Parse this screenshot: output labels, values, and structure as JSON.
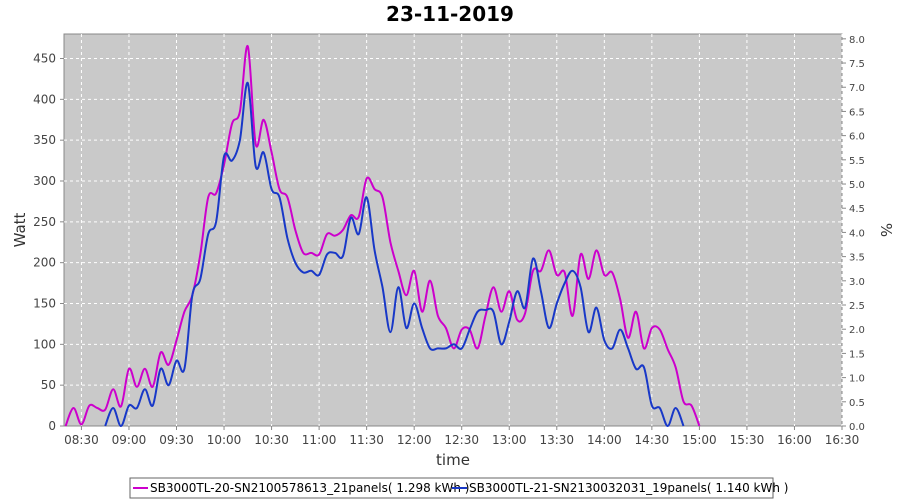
{
  "chart_data": {
    "type": "line",
    "title": "23-11-2019",
    "xlabel": "time",
    "ylabel": "Watt",
    "y2label": "%",
    "xlim": [
      "08:19",
      "16:30"
    ],
    "ylim": [
      0,
      480
    ],
    "y2lim": [
      0,
      8.1
    ],
    "x_ticks": [
      "08:30",
      "09:00",
      "09:30",
      "10:00",
      "10:30",
      "11:00",
      "11:30",
      "12:00",
      "12:30",
      "13:00",
      "13:30",
      "14:00",
      "14:30",
      "15:00",
      "15:30",
      "16:00",
      "16:30"
    ],
    "y_ticks": [
      0,
      50,
      100,
      150,
      200,
      250,
      300,
      350,
      400,
      450
    ],
    "y2_ticks": [
      "0.0",
      "0.5",
      "1.0",
      "1.5",
      "2.0",
      "2.5",
      "3.0",
      "3.5",
      "4.0",
      "4.5",
      "5.0",
      "5.5",
      "6.0",
      "6.5",
      "7.0",
      "7.5",
      "8.0"
    ],
    "grid": true,
    "legend": "bottom",
    "series": [
      {
        "name": "SB3000TL-20-SN2100578613_21panels( 1.298 kWh )",
        "color": "#cc00cc",
        "points": [
          [
            "08:20",
            0
          ],
          [
            "08:25",
            22
          ],
          [
            "08:30",
            2
          ],
          [
            "08:35",
            25
          ],
          [
            "08:40",
            22
          ],
          [
            "08:45",
            20
          ],
          [
            "08:50",
            45
          ],
          [
            "08:55",
            24
          ],
          [
            "09:00",
            70
          ],
          [
            "09:05",
            48
          ],
          [
            "09:10",
            70
          ],
          [
            "09:15",
            48
          ],
          [
            "09:20",
            90
          ],
          [
            "09:25",
            75
          ],
          [
            "09:30",
            105
          ],
          [
            "09:35",
            140
          ],
          [
            "09:40",
            160
          ],
          [
            "09:45",
            210
          ],
          [
            "09:50",
            280
          ],
          [
            "09:55",
            285
          ],
          [
            "10:00",
            320
          ],
          [
            "10:05",
            370
          ],
          [
            "10:10",
            385
          ],
          [
            "10:15",
            465
          ],
          [
            "10:20",
            345
          ],
          [
            "10:25",
            375
          ],
          [
            "10:30",
            335
          ],
          [
            "10:35",
            290
          ],
          [
            "10:40",
            280
          ],
          [
            "10:45",
            240
          ],
          [
            "10:50",
            212
          ],
          [
            "10:55",
            212
          ],
          [
            "11:00",
            210
          ],
          [
            "11:05",
            235
          ],
          [
            "11:10",
            233
          ],
          [
            "11:15",
            240
          ],
          [
            "11:20",
            258
          ],
          [
            "11:25",
            256
          ],
          [
            "11:30",
            303
          ],
          [
            "11:35",
            290
          ],
          [
            "11:40",
            280
          ],
          [
            "11:45",
            225
          ],
          [
            "11:50",
            190
          ],
          [
            "11:55",
            160
          ],
          [
            "12:00",
            190
          ],
          [
            "12:05",
            140
          ],
          [
            "12:10",
            178
          ],
          [
            "12:15",
            135
          ],
          [
            "12:20",
            120
          ],
          [
            "12:25",
            95
          ],
          [
            "12:30",
            118
          ],
          [
            "12:35",
            118
          ],
          [
            "12:40",
            95
          ],
          [
            "12:45",
            135
          ],
          [
            "12:50",
            170
          ],
          [
            "12:55",
            140
          ],
          [
            "13:00",
            165
          ],
          [
            "13:05",
            130
          ],
          [
            "13:10",
            138
          ],
          [
            "13:15",
            190
          ],
          [
            "13:20",
            190
          ],
          [
            "13:25",
            215
          ],
          [
            "13:30",
            185
          ],
          [
            "13:35",
            188
          ],
          [
            "13:40",
            135
          ],
          [
            "13:45",
            210
          ],
          [
            "13:50",
            180
          ],
          [
            "13:55",
            215
          ],
          [
            "14:00",
            185
          ],
          [
            "14:05",
            188
          ],
          [
            "14:10",
            155
          ],
          [
            "14:15",
            108
          ],
          [
            "14:20",
            140
          ],
          [
            "14:25",
            95
          ],
          [
            "14:30",
            120
          ],
          [
            "14:35",
            118
          ],
          [
            "14:40",
            94
          ],
          [
            "14:45",
            72
          ],
          [
            "14:50",
            30
          ],
          [
            "14:55",
            25
          ],
          [
            "15:00",
            0
          ]
        ]
      },
      {
        "name": "SB3000TL-21-SN2130032031_19panels( 1.140 kWh )",
        "color": "#1838c8",
        "points": [
          [
            "08:45",
            0
          ],
          [
            "08:50",
            22
          ],
          [
            "08:55",
            0
          ],
          [
            "09:00",
            25
          ],
          [
            "09:05",
            22
          ],
          [
            "09:10",
            45
          ],
          [
            "09:15",
            25
          ],
          [
            "09:20",
            70
          ],
          [
            "09:25",
            50
          ],
          [
            "09:30",
            80
          ],
          [
            "09:35",
            70
          ],
          [
            "09:40",
            160
          ],
          [
            "09:45",
            180
          ],
          [
            "09:50",
            235
          ],
          [
            "09:55",
            250
          ],
          [
            "10:00",
            330
          ],
          [
            "10:05",
            325
          ],
          [
            "10:10",
            350
          ],
          [
            "10:15",
            420
          ],
          [
            "10:20",
            318
          ],
          [
            "10:25",
            335
          ],
          [
            "10:30",
            290
          ],
          [
            "10:35",
            280
          ],
          [
            "10:40",
            230
          ],
          [
            "10:45",
            200
          ],
          [
            "10:50",
            188
          ],
          [
            "10:55",
            190
          ],
          [
            "11:00",
            185
          ],
          [
            "11:05",
            210
          ],
          [
            "11:10",
            212
          ],
          [
            "11:15",
            208
          ],
          [
            "11:20",
            255
          ],
          [
            "11:25",
            235
          ],
          [
            "11:30",
            280
          ],
          [
            "11:35",
            215
          ],
          [
            "11:40",
            170
          ],
          [
            "11:45",
            115
          ],
          [
            "11:50",
            170
          ],
          [
            "11:55",
            120
          ],
          [
            "12:00",
            150
          ],
          [
            "12:05",
            120
          ],
          [
            "12:10",
            95
          ],
          [
            "12:15",
            95
          ],
          [
            "12:20",
            95
          ],
          [
            "12:25",
            100
          ],
          [
            "12:30",
            95
          ],
          [
            "12:35",
            118
          ],
          [
            "12:40",
            140
          ],
          [
            "12:45",
            142
          ],
          [
            "12:50",
            140
          ],
          [
            "12:55",
            100
          ],
          [
            "13:00",
            128
          ],
          [
            "13:05",
            165
          ],
          [
            "13:10",
            145
          ],
          [
            "13:15",
            205
          ],
          [
            "13:20",
            165
          ],
          [
            "13:25",
            120
          ],
          [
            "13:30",
            150
          ],
          [
            "13:35",
            175
          ],
          [
            "13:40",
            190
          ],
          [
            "13:45",
            170
          ],
          [
            "13:50",
            115
          ],
          [
            "13:55",
            145
          ],
          [
            "14:00",
            105
          ],
          [
            "14:05",
            95
          ],
          [
            "14:10",
            118
          ],
          [
            "14:15",
            95
          ],
          [
            "14:20",
            70
          ],
          [
            "14:25",
            72
          ],
          [
            "14:30",
            25
          ],
          [
            "14:35",
            22
          ],
          [
            "14:40",
            0
          ],
          [
            "14:45",
            22
          ],
          [
            "14:50",
            0
          ]
        ]
      }
    ]
  }
}
